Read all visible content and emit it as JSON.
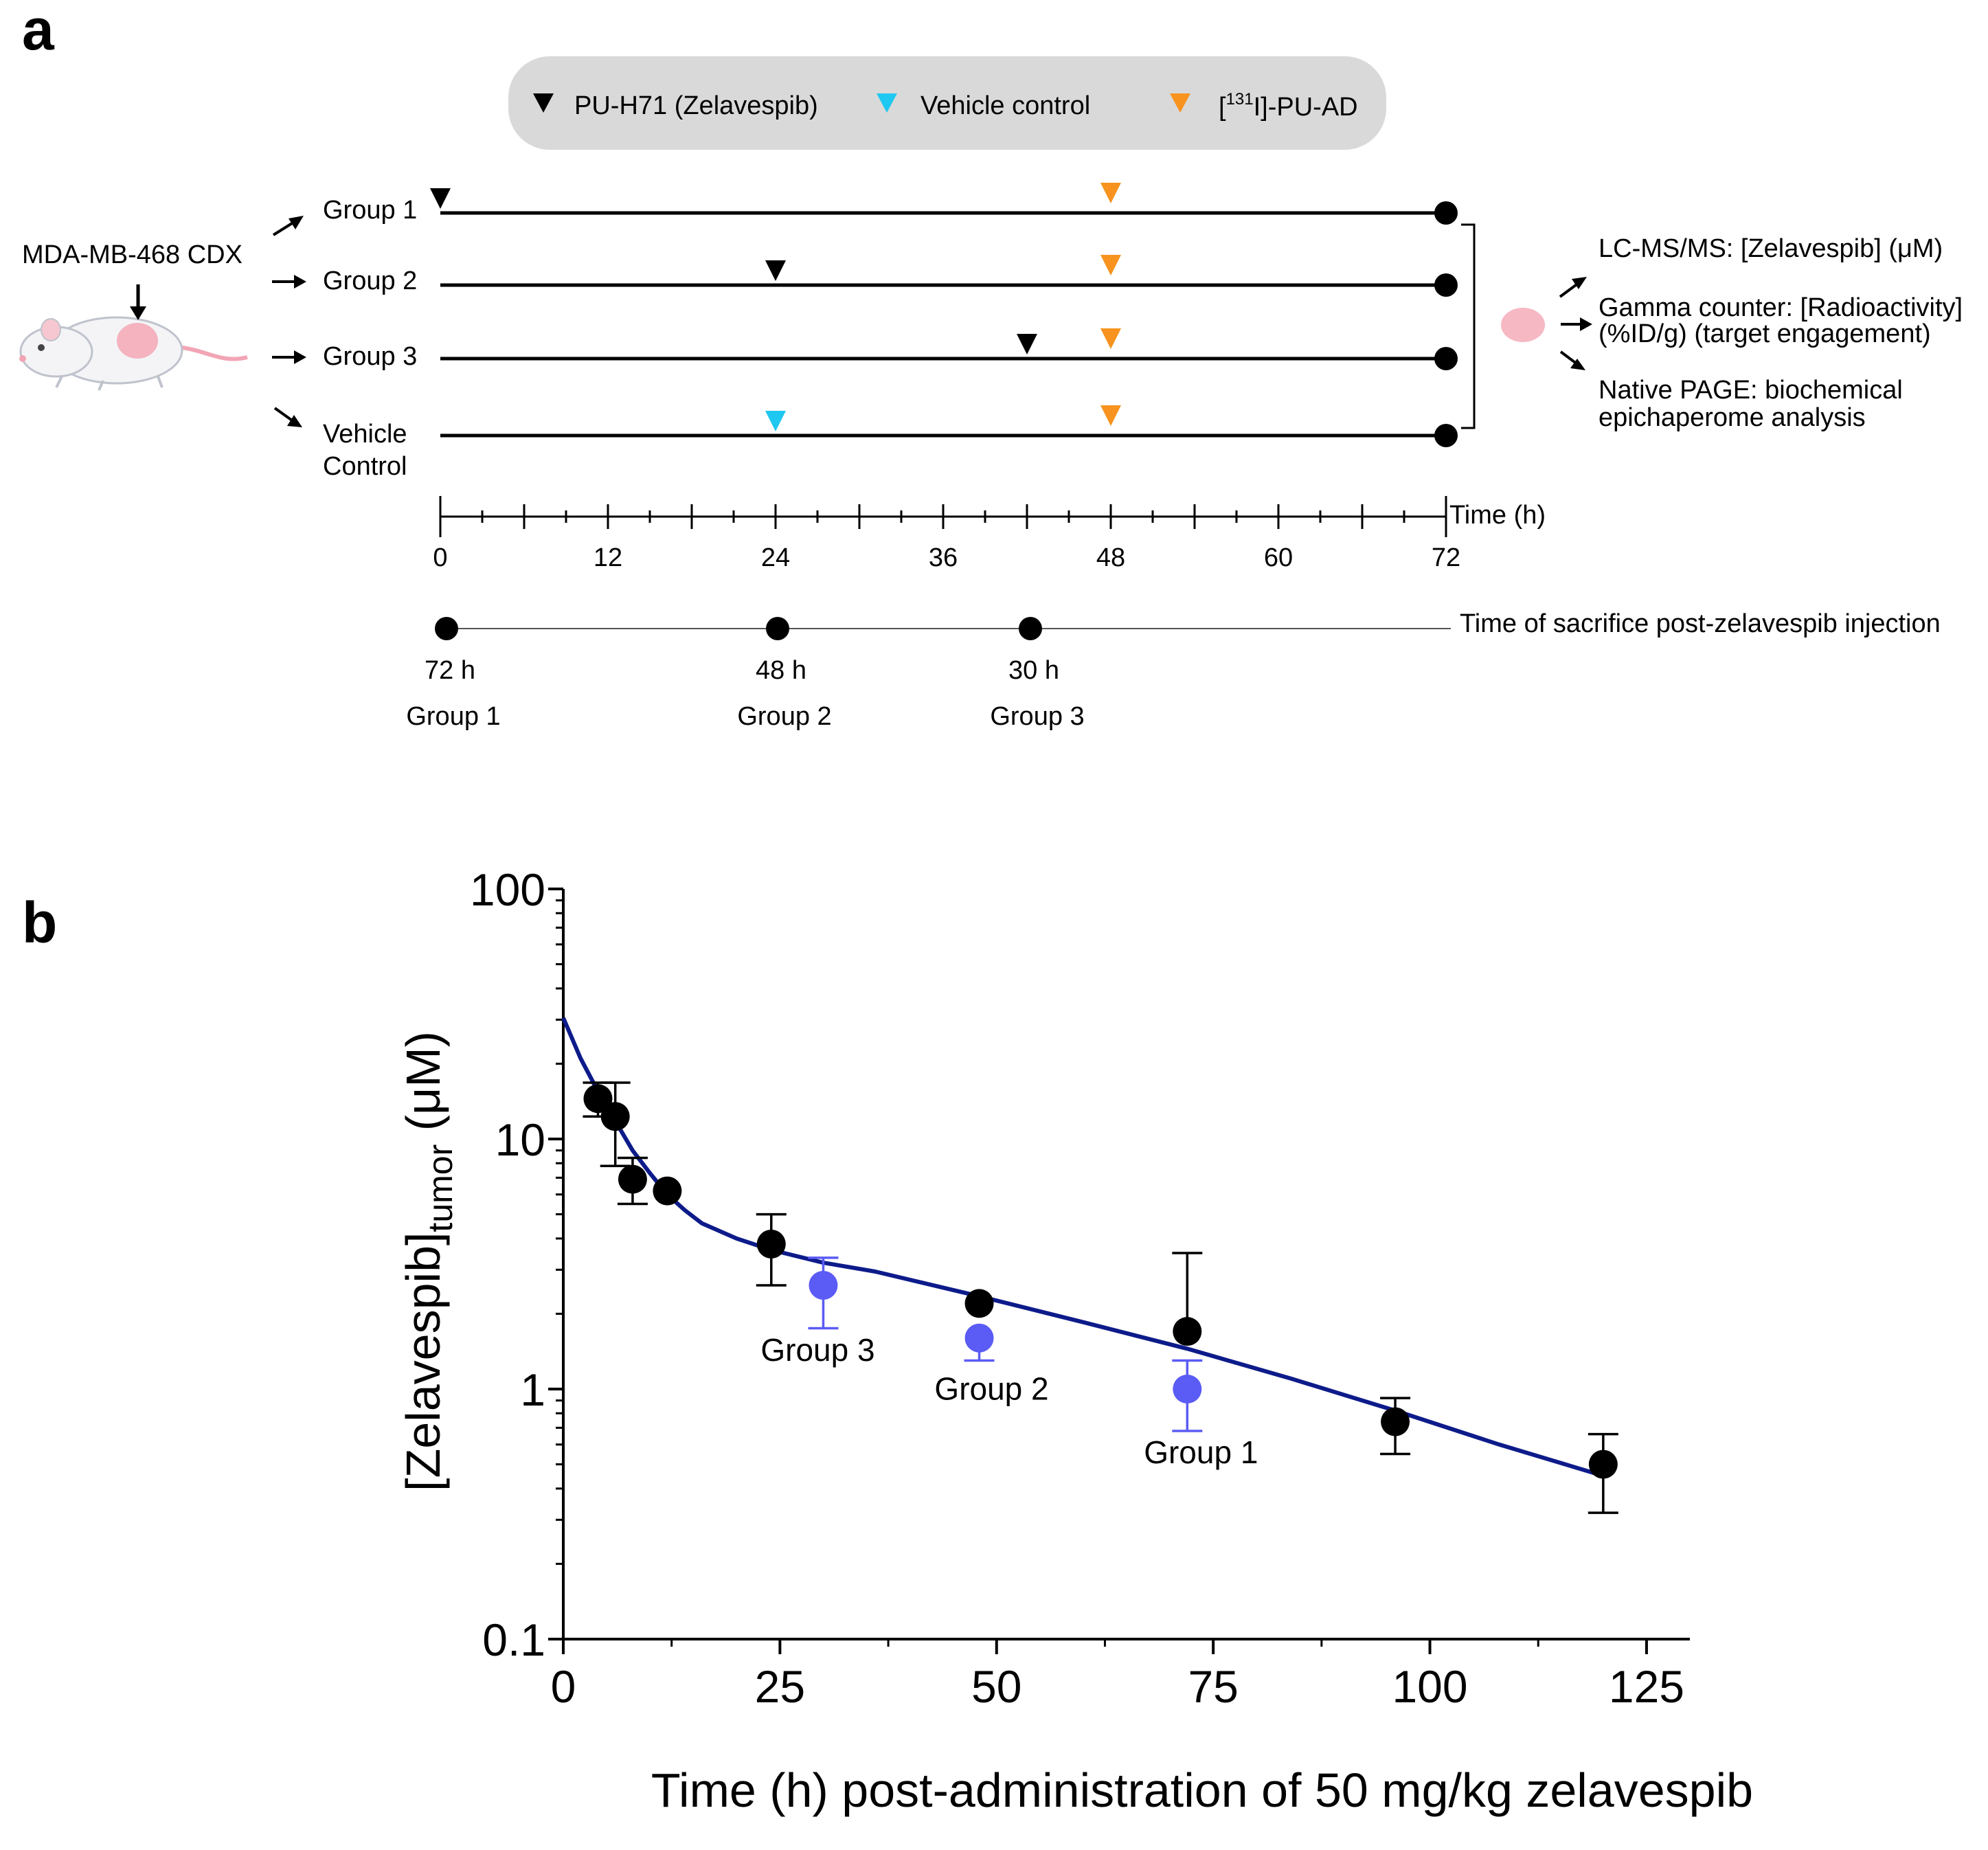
{
  "panel_a": {
    "label": "a",
    "legend": {
      "zelavespib": "PU-H71 (Zelavespib)",
      "vehicle": "Vehicle control",
      "tracer_sup": "131",
      "tracer_pre": "[",
      "tracer_post": "I]-PU-AD"
    },
    "model": "MDA-MB-468 CDX",
    "groups": [
      {
        "label": "Group 1",
        "dose_time_h": 0,
        "dose": "zelavespib"
      },
      {
        "label": "Group 2",
        "dose_time_h": 24,
        "dose": "zelavespib"
      },
      {
        "label": "Group 3",
        "dose_time_h": 42,
        "dose": "zelavespib"
      },
      {
        "label_line1": "Vehicle",
        "label_line2": "Control",
        "dose_time_h": 24,
        "dose": "vehicle"
      }
    ],
    "tracer_time_h": 48,
    "endpoint_time_h": 72,
    "timeline": {
      "label": "Time (h)",
      "ticks": [
        "0",
        "12",
        "24",
        "36",
        "48",
        "60",
        "72"
      ],
      "range": [
        0,
        72
      ]
    },
    "readouts": [
      {
        "line1": "LC-MS/MS: [Zelavespib] (μM)"
      },
      {
        "line1": "Gamma counter: [Radioactivity]",
        "line2": "(%ID/g) (target engagement)"
      },
      {
        "line1": "Native PAGE: biochemical",
        "line2": "epichaperome analysis"
      }
    ],
    "sacrifice": {
      "label": "Time of sacrifice post-zelavespib injection",
      "points": [
        {
          "time": "72 h",
          "group": "Group 1"
        },
        {
          "time": "48 h",
          "group": "Group 2"
        },
        {
          "time": "30 h",
          "group": "Group 3"
        }
      ]
    },
    "colors": {
      "zelavespib": "#000000",
      "vehicle": "#1ec8f0",
      "tracer": "#f7931e",
      "legend_bg": "#d9d9d9"
    }
  },
  "panel_b": {
    "label": "b"
  },
  "chart_data": {
    "type": "scatter",
    "ylabel_main": "[Zelavespib]",
    "ylabel_sub": "tumor",
    "ylabel_unit": " (μM)",
    "xlabel": "Time (h) post-administration of 50 mg/kg zelavespib",
    "xlim": [
      0,
      130
    ],
    "ylim": [
      0.1,
      100
    ],
    "yscale": "log",
    "xticks": [
      "0",
      "25",
      "50",
      "75",
      "100",
      "125"
    ],
    "yticks": [
      "0.1",
      "1",
      "10",
      "100"
    ],
    "series": [
      {
        "color": "#000000",
        "points": [
          {
            "x": 4,
            "y": 14.5,
            "lo": 12.3,
            "hi": 16.8
          },
          {
            "x": 6,
            "y": 12.3,
            "lo": 7.8,
            "hi": 16.8
          },
          {
            "x": 8,
            "y": 6.9,
            "lo": 5.5,
            "hi": 8.4
          },
          {
            "x": 12,
            "y": 6.2,
            "lo": 6.2,
            "hi": 6.2
          },
          {
            "x": 24,
            "y": 3.8,
            "lo": 2.6,
            "hi": 5.0
          },
          {
            "x": 48,
            "y": 2.2,
            "lo": 2.2,
            "hi": 2.2
          },
          {
            "x": 72,
            "y": 1.7,
            "lo": 1.7,
            "hi": 3.5
          },
          {
            "x": 96,
            "y": 0.74,
            "lo": 0.55,
            "hi": 0.92
          },
          {
            "x": 120,
            "y": 0.5,
            "lo": 0.32,
            "hi": 0.66
          }
        ]
      },
      {
        "color": "#5b5bf5",
        "points": [
          {
            "x": 30,
            "y": 2.6,
            "lo": 1.75,
            "hi": 3.35,
            "label": "Group 3"
          },
          {
            "x": 48,
            "y": 1.6,
            "lo": 1.3,
            "hi": 1.6,
            "label": "Group 2"
          },
          {
            "x": 72,
            "y": 1.0,
            "lo": 0.68,
            "hi": 1.3,
            "label": "Group 1"
          }
        ]
      }
    ],
    "fit": {
      "color": "#0d1b8a",
      "x": [
        0,
        2,
        4,
        6,
        8,
        10,
        12,
        14,
        16,
        20,
        24,
        30,
        36,
        48,
        60,
        72,
        84,
        96,
        108,
        120
      ],
      "y": [
        30.5,
        21,
        15.5,
        11.8,
        9.0,
        7.3,
        6.0,
        5.2,
        4.6,
        4.0,
        3.6,
        3.2,
        2.95,
        2.35,
        1.85,
        1.45,
        1.1,
        0.82,
        0.6,
        0.45
      ]
    }
  }
}
